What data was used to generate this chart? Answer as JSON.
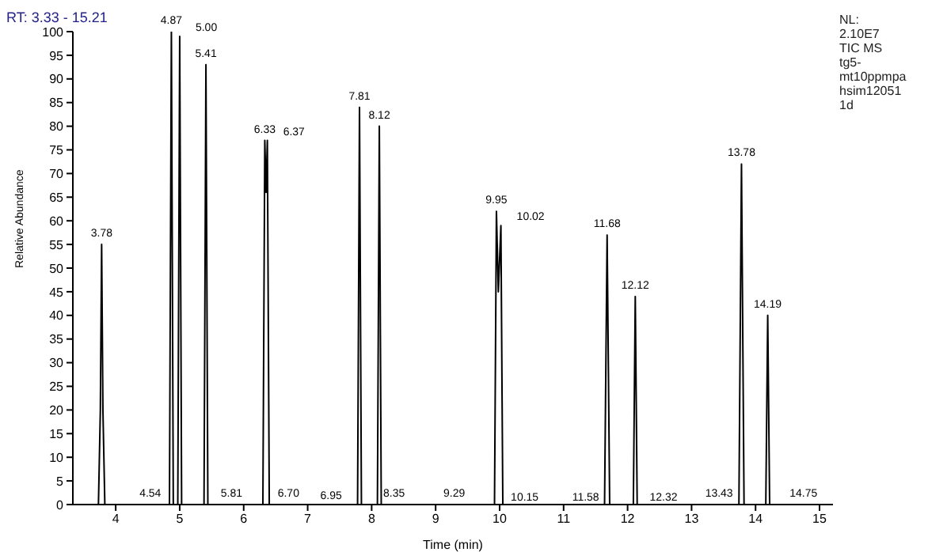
{
  "chart_data": {
    "type": "line",
    "xlabel": "Time (min)",
    "ylabel": "Relative Abundance",
    "x": [
      3.33,
      3.73,
      3.76,
      3.78,
      3.8,
      3.83,
      4.84,
      4.87,
      4.9,
      4.97,
      5.0,
      5.03,
      5.38,
      5.41,
      5.44,
      6.3,
      6.33,
      6.35,
      6.37,
      6.4,
      7.78,
      7.81,
      7.84,
      8.09,
      8.12,
      8.15,
      9.92,
      9.95,
      9.98,
      10.02,
      10.05,
      11.64,
      11.68,
      11.72,
      12.09,
      12.12,
      12.15,
      13.74,
      13.78,
      13.82,
      14.16,
      14.19,
      14.22,
      15.21
    ],
    "series": [
      {
        "color": "#000000",
        "values": [
          0,
          0,
          20,
          55,
          20,
          0,
          0,
          100,
          0,
          0,
          99,
          0,
          0,
          93,
          0,
          0,
          77,
          66,
          77,
          0,
          0,
          84,
          0,
          0,
          80,
          0,
          0,
          62,
          45,
          59,
          0,
          0,
          57,
          0,
          0,
          44,
          0,
          0,
          72,
          0,
          0,
          40,
          0,
          0
        ]
      }
    ],
    "xlim": [
      3.33,
      15.21
    ],
    "xticks": [
      4,
      5,
      6,
      7,
      8,
      9,
      10,
      11,
      12,
      13,
      14,
      15
    ],
    "ylim": [
      0,
      100
    ],
    "yticks": [
      0,
      5,
      10,
      15,
      20,
      25,
      30,
      35,
      40,
      45,
      50,
      55,
      60,
      65,
      70,
      75,
      80,
      85,
      90,
      95,
      100
    ],
    "grid": false,
    "legend": false,
    "marker": "none",
    "line_style": "solid",
    "annotations": [
      "RT: 3.33 - 15.21",
      "NL:\n2.10E7\nTIC MS\ntg5-\nmt10ppmpa\nhsim12051\n1d",
      {
        "text": "3.78",
        "x": 3.78,
        "y": 55
      },
      {
        "text": "4.87",
        "x": 4.87,
        "y": 100
      },
      {
        "text": "5.00",
        "x": 5.0,
        "y": 99
      },
      {
        "text": "5.41",
        "x": 5.41,
        "y": 93
      },
      {
        "text": "6.33",
        "x": 6.33,
        "y": 77
      },
      {
        "text": "6.37",
        "x": 6.37,
        "y": 77
      },
      {
        "text": "7.81",
        "x": 7.81,
        "y": 84
      },
      {
        "text": "8.12",
        "x": 8.12,
        "y": 80
      },
      {
        "text": "9.95",
        "x": 9.95,
        "y": 62
      },
      {
        "text": "10.02",
        "x": 10.02,
        "y": 59
      },
      {
        "text": "11.68",
        "x": 11.68,
        "y": 57
      },
      {
        "text": "12.12",
        "x": 12.12,
        "y": 44
      },
      {
        "text": "13.78",
        "x": 13.78,
        "y": 72
      },
      {
        "text": "14.19",
        "x": 14.19,
        "y": 40
      },
      {
        "text": "4.54",
        "x": 4.54,
        "y": 0
      },
      {
        "text": "5.81",
        "x": 5.81,
        "y": 0
      },
      {
        "text": "6.70",
        "x": 6.7,
        "y": 0
      },
      {
        "text": "6.95",
        "x": 6.95,
        "y": 0
      },
      {
        "text": "8.35",
        "x": 8.35,
        "y": 0
      },
      {
        "text": "9.29",
        "x": 9.29,
        "y": 0
      },
      {
        "text": "10.15",
        "x": 10.15,
        "y": 0
      },
      {
        "text": "11.58",
        "x": 11.58,
        "y": 0
      },
      {
        "text": "12.32",
        "x": 12.32,
        "y": 0
      },
      {
        "text": "13.43",
        "x": 13.43,
        "y": 0
      },
      {
        "text": "14.75",
        "x": 14.75,
        "y": 0
      }
    ]
  }
}
